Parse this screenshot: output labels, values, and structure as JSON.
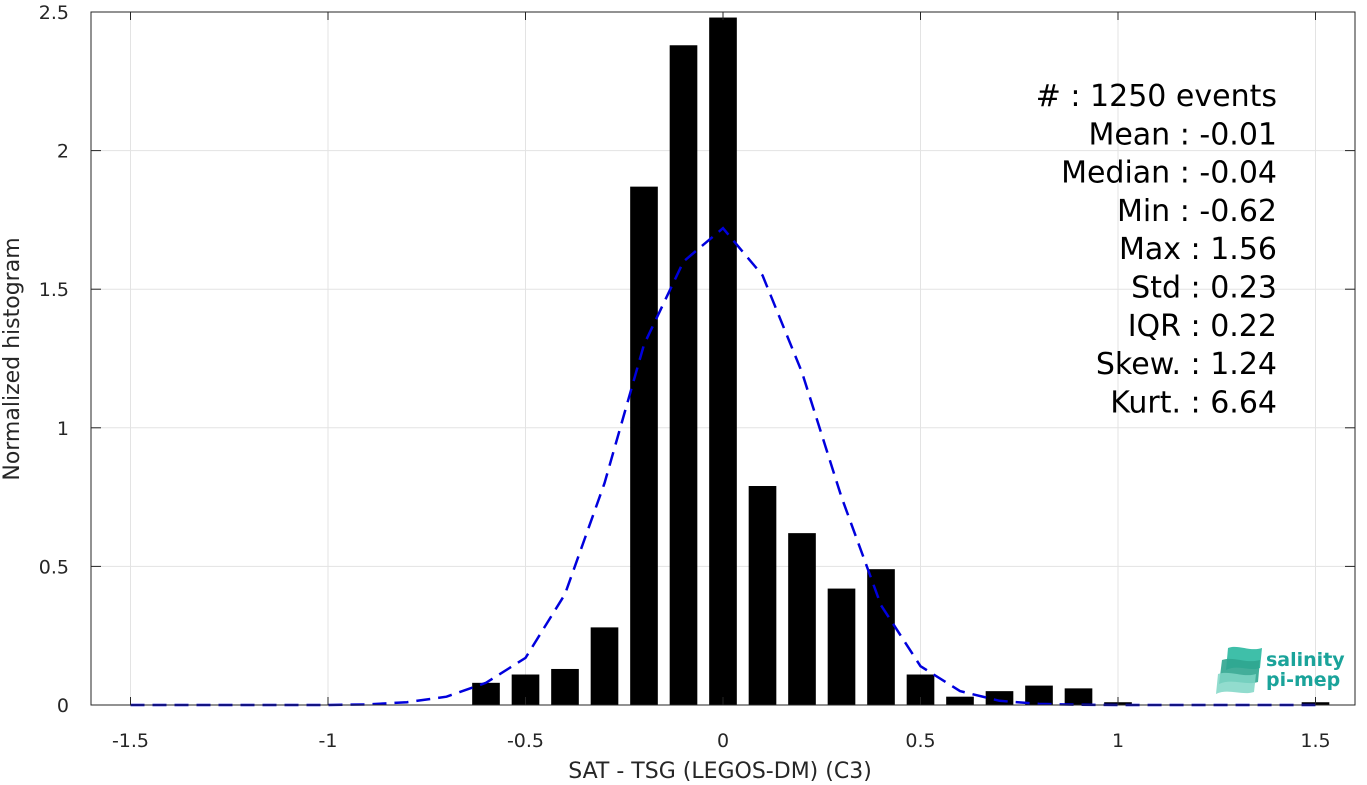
{
  "chart_data": {
    "type": "bar",
    "title": "",
    "xlabel": "SAT - TSG (LEGOS-DM) (C3)",
    "ylabel": "Normalized histogram",
    "xlim": [
      -1.6,
      1.6
    ],
    "ylim": [
      0,
      2.5
    ],
    "xticks": [
      -1.5,
      -1,
      -0.5,
      0,
      0.5,
      1,
      1.5
    ],
    "xtick_labels": [
      "-1.5",
      "-1",
      "-0.5",
      "0",
      "0.5",
      "1",
      "1.5"
    ],
    "yticks": [
      0,
      0.5,
      1,
      1.5,
      2,
      2.5
    ],
    "ytick_labels": [
      "0",
      "0.5",
      "1",
      "1.5",
      "2",
      "2.5"
    ],
    "grid": true,
    "bar_width": 0.07,
    "bars": [
      {
        "x": -0.6,
        "y": 0.08
      },
      {
        "x": -0.5,
        "y": 0.11
      },
      {
        "x": -0.4,
        "y": 0.13
      },
      {
        "x": -0.3,
        "y": 0.28
      },
      {
        "x": -0.2,
        "y": 1.87
      },
      {
        "x": -0.1,
        "y": 2.38
      },
      {
        "x": 0.0,
        "y": 2.48
      },
      {
        "x": 0.1,
        "y": 0.79
      },
      {
        "x": 0.2,
        "y": 0.62
      },
      {
        "x": 0.3,
        "y": 0.42
      },
      {
        "x": 0.4,
        "y": 0.49
      },
      {
        "x": 0.5,
        "y": 0.11
      },
      {
        "x": 0.6,
        "y": 0.03
      },
      {
        "x": 0.7,
        "y": 0.05
      },
      {
        "x": 0.8,
        "y": 0.07
      },
      {
        "x": 0.9,
        "y": 0.06
      },
      {
        "x": 1.0,
        "y": 0.01
      },
      {
        "x": 1.5,
        "y": 0.01
      }
    ],
    "bar_color": "#000000",
    "fit_curve": {
      "style": "dashed",
      "color": "#0000dd",
      "x": [
        -1.5,
        -1.4,
        -1.3,
        -1.2,
        -1.1,
        -1.0,
        -0.9,
        -0.8,
        -0.7,
        -0.6,
        -0.5,
        -0.4,
        -0.3,
        -0.2,
        -0.1,
        0.0,
        0.1,
        0.2,
        0.3,
        0.4,
        0.5,
        0.6,
        0.7,
        0.8,
        0.9,
        1.0,
        1.1,
        1.2,
        1.3,
        1.4,
        1.5
      ],
      "y": [
        0,
        0,
        0,
        0,
        0,
        0,
        0.002,
        0.01,
        0.03,
        0.08,
        0.17,
        0.4,
        0.8,
        1.3,
        1.6,
        1.72,
        1.55,
        1.2,
        0.75,
        0.36,
        0.14,
        0.05,
        0.015,
        0.004,
        0.001,
        0,
        0,
        0,
        0,
        0,
        0
      ]
    },
    "stats": [
      "#  : 1250 events",
      "Mean : -0.01",
      "Median : -0.04",
      "Min : -0.62",
      "Max : 1.56",
      "Std : 0.23",
      "IQR : 0.22",
      "Skew. : 1.24",
      "Kurt. : 6.64"
    ]
  },
  "logo": {
    "line1": "salinity",
    "line2": "pi-mep",
    "color": "#1aa39a"
  }
}
